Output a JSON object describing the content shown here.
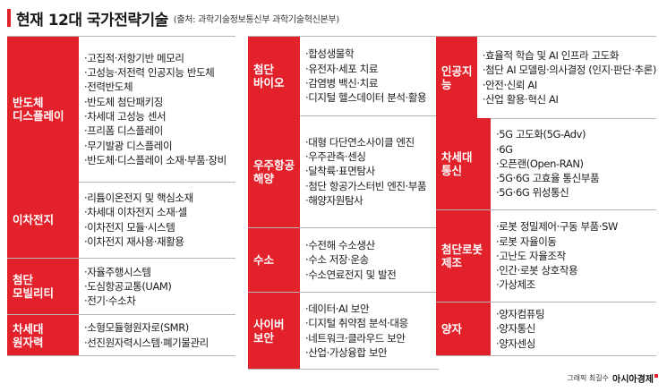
{
  "header": {
    "title": "현재 12대 국가전략기술",
    "subtitle": "(출처: 과학기술정보통신부 과학기술혁신본부)"
  },
  "columns": [
    [
      {
        "label": [
          "반도체",
          "디스플레이"
        ],
        "items": [
          "고집적·저항기반 메모리",
          "고성능·저전력 인공지능 반도체",
          "전력반도체",
          "반도체 첨단패키징",
          "차세대 고성능 센서",
          "프리폼 디스플레이",
          "무기발광 디스플레이",
          "반도체·디스플레이 소재·부품·장비"
        ]
      },
      {
        "label": [
          "이차전지"
        ],
        "items": [
          "리튬이온전지 및 핵심소재",
          "차세대 이차전지 소재·셀",
          "이차전지 모듈·시스템",
          "이차전지 재사용·재활용"
        ]
      },
      {
        "label": [
          "첨단",
          "모빌리티"
        ],
        "items": [
          "자율주행시스템",
          "도심항공교통(UAM)",
          "전기·수소차"
        ]
      },
      {
        "label": [
          "차세대",
          "원자력"
        ],
        "items": [
          "소형모듈형원자로(SMR)",
          "선진원자력시스템·폐기물관리"
        ]
      }
    ],
    [
      {
        "label": [
          "첨단",
          "바이오"
        ],
        "items": [
          "합성생물학",
          "유전자·세포 치료",
          "감염병 백신·치료",
          "디지털 헬스데이터 분석·활용"
        ]
      },
      {
        "label": [
          "우주항공",
          "해양"
        ],
        "items": [
          "대형 다단연소사이클 엔진",
          "우주관측·센싱",
          "달착륙·표면탐사",
          "첨단 항공가스터빈 엔진·부품",
          "해양자원탐사"
        ]
      },
      {
        "label": [
          "수소"
        ],
        "items": [
          "수전해 수소생산",
          "수소 저장·운송",
          "수소연료전지 및 발전"
        ]
      },
      {
        "label": [
          "사이버",
          "보안"
        ],
        "items": [
          "데이터·AI 보안",
          "디지털 취약점 분석·대응",
          "네트워크·클라우드 보안",
          "산업·가상융합 보안"
        ]
      }
    ],
    [
      {
        "label": [
          "인공지능"
        ],
        "items": [
          "효율적 학습 및 AI 인프라 고도화",
          "첨단 AI 모델링·의사결정 (인지·판단·추론)",
          "안전·신뢰 AI",
          "산업 활용·혁신 AI"
        ]
      },
      {
        "label": [
          "차세대",
          "통신"
        ],
        "items": [
          "5G 고도화(5G-Adv)",
          "6G",
          "오픈랜(Open-RAN)",
          "5G·6G 고효율 통신부품",
          "5G·6G 위성통신"
        ]
      },
      {
        "label": [
          "첨단로봇",
          "제조"
        ],
        "items": [
          "로봇 정밀제어·구동 부품·SW",
          "로봇 자율이동",
          "고난도 자율조작",
          "인간·로봇 상호작용",
          "가상제조"
        ]
      },
      {
        "label": [
          "양자"
        ],
        "items": [
          "양자컴퓨팅",
          "양자통신",
          "양자센싱"
        ]
      }
    ]
  ],
  "footer": {
    "credit": "그래픽 최길수",
    "brand": "아시아경제"
  },
  "colors": {
    "accent": "#e2212b"
  }
}
